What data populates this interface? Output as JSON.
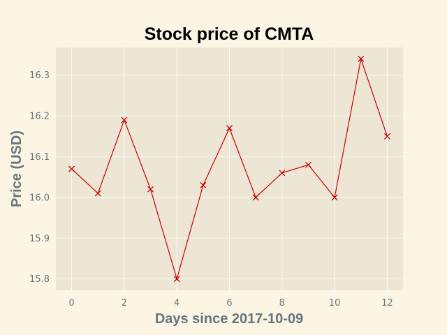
{
  "chart_data": {
    "type": "line",
    "title": "Stock price of CMTA",
    "xlabel": "Days since 2017-10-09",
    "ylabel": "Price (USD)",
    "x": [
      0,
      1,
      2,
      3,
      4,
      5,
      6,
      7,
      8,
      9,
      10,
      11,
      12
    ],
    "series": [
      {
        "values": [
          16.07,
          16.01,
          16.19,
          16.02,
          15.8,
          16.03,
          16.17,
          16.0,
          16.06,
          16.08,
          16.0,
          16.34,
          16.15
        ]
      }
    ],
    "xticks": [
      "0",
      "2",
      "4",
      "6",
      "8",
      "10",
      "12"
    ],
    "yticks": [
      "15.8",
      "15.9",
      "16.0",
      "16.1",
      "16.2",
      "16.3"
    ],
    "xlim": [
      -0.6,
      12.6
    ],
    "ylim": [
      15.772,
      16.368
    ],
    "grid": true,
    "marker": "x",
    "colors": {
      "line": "#cc0000",
      "plot_background": "#ede6d5",
      "figure_background": "#fcf5e4",
      "grid": "#fbf9f3",
      "label": "#65767e"
    }
  }
}
